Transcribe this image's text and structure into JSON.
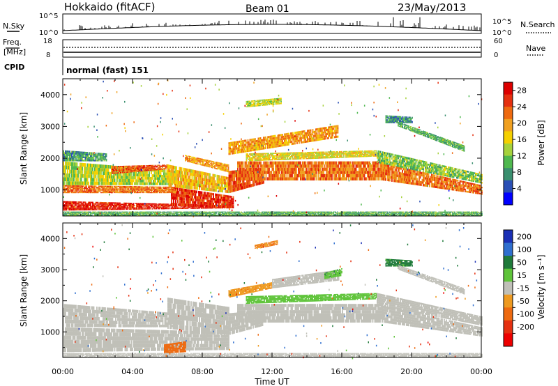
{
  "header": {
    "site": "Hokkaido (fitACF)",
    "beam": "Beam 01",
    "date": "23/May/2013"
  },
  "summary": {
    "nsky_label": "N.Sky",
    "nsearch_label": "N.Search",
    "noise_ticks": [
      "10^5",
      "10^0"
    ],
    "freq_label_top": "Freq.",
    "freq_label_unit": "[MHz]",
    "freq_ticks": [
      "18",
      "8"
    ],
    "nave_ticks": [
      "60",
      "0"
    ],
    "nave_label": "Nave",
    "cpid_label": "CPID",
    "cpid_value": "normal (fast) 151"
  },
  "colors": {
    "power_scale": [
      "#0000ff",
      "#2a4fb5",
      "#3a8f6f",
      "#4fb84f",
      "#a6d23c",
      "#f5d000",
      "#f0a020",
      "#ee6a10",
      "#e53010",
      "#dd0000"
    ],
    "velocity_scale": [
      "#1a2fb5",
      "#2f6fcf",
      "#1f7a3a",
      "#5fc43a",
      "#c0c0b8",
      "#c0c0b8",
      "#ee9a20",
      "#ee6a10",
      "#e53010",
      "#ee0000"
    ],
    "ground_scatter": "#b8b8b0"
  },
  "chart_data": [
    {
      "type": "heatmap",
      "name": "power",
      "ylabel": "Slant Range [km]",
      "yticks": [
        1000,
        2000,
        3000,
        4000
      ],
      "ylim": [
        180,
        4500
      ],
      "xlim": [
        0,
        24
      ],
      "colorbar_label": "Power [dB]",
      "colorbar_ticks": [
        4,
        8,
        12,
        16,
        20,
        24,
        28
      ],
      "colorbar_range": [
        0,
        30
      ],
      "bands": [
        {
          "t": [
            0.0,
            9.5
          ],
          "r0": [
            350,
            420
          ],
          "r1": [
            650,
            520
          ],
          "p": 27
        },
        {
          "t": [
            6.2,
            9.8
          ],
          "r0": [
            500,
            420
          ],
          "r1": [
            1100,
            800
          ],
          "p": 26
        },
        {
          "t": [
            0.0,
            6.5
          ],
          "r0": [
            900,
            900
          ],
          "r1": [
            1150,
            1100
          ],
          "p": 22
        },
        {
          "t": [
            0.0,
            6.5
          ],
          "r0": [
            1150,
            1150
          ],
          "r1": [
            1900,
            1600
          ],
          "p": 14
        },
        {
          "t": [
            0.0,
            2.5
          ],
          "r0": [
            1900,
            1900
          ],
          "r1": [
            2250,
            2150
          ],
          "p": 9
        },
        {
          "t": [
            2.8,
            6.0
          ],
          "r0": [
            1500,
            1650
          ],
          "r1": [
            1750,
            1800
          ],
          "p": 24
        },
        {
          "t": [
            6.0,
            9.5
          ],
          "r0": [
            1100,
            900
          ],
          "r1": [
            1800,
            1400
          ],
          "p": 18
        },
        {
          "t": [
            7.0,
            9.5
          ],
          "r0": [
            1900,
            1550
          ],
          "r1": [
            2100,
            1800
          ],
          "p": 20
        },
        {
          "t": [
            9.5,
            11.5
          ],
          "r0": [
            900,
            1200
          ],
          "r1": [
            1600,
            1700
          ],
          "p": 24
        },
        {
          "t": [
            10.0,
            18.3
          ],
          "r0": [
            1300,
            1300
          ],
          "r1": [
            1900,
            1900
          ],
          "p": 22
        },
        {
          "t": [
            10.5,
            18.0
          ],
          "r0": [
            1900,
            2050
          ],
          "r1": [
            2150,
            2250
          ],
          "p": 16
        },
        {
          "t": [
            9.5,
            15.8
          ],
          "r0": [
            2100,
            2650
          ],
          "r1": [
            2500,
            3050
          ],
          "p": 20
        },
        {
          "t": [
            18.3,
            24.0
          ],
          "r0": [
            1300,
            850
          ],
          "r1": [
            1850,
            1150
          ],
          "p": 22
        },
        {
          "t": [
            18.0,
            24.0
          ],
          "r0": [
            1850,
            1200
          ],
          "r1": [
            2250,
            1500
          ],
          "p": 12
        },
        {
          "t": [
            18.5,
            20.0
          ],
          "r0": [
            3100,
            3100
          ],
          "r1": [
            3350,
            3300
          ],
          "p": 8
        },
        {
          "t": [
            19.2,
            23.0
          ],
          "r0": [
            3000,
            2200
          ],
          "r1": [
            3150,
            2400
          ],
          "p": 10
        },
        {
          "t": [
            10.5,
            12.5
          ],
          "r0": [
            3600,
            3700
          ],
          "r1": [
            3800,
            3900
          ],
          "p": 14
        },
        {
          "t": [
            0.0,
            24.0
          ],
          "r0": [
            180,
            180
          ],
          "r1": [
            320,
            320
          ],
          "p": 10
        }
      ]
    },
    {
      "type": "heatmap",
      "name": "velocity",
      "ylabel": "Slant Range [km]",
      "yticks": [
        1000,
        2000,
        3000,
        4000
      ],
      "ylim": [
        180,
        4500
      ],
      "xlim": [
        0,
        24
      ],
      "xlabel": "Time UT",
      "xticks": [
        "00:00",
        "04:00",
        "08:00",
        "12:00",
        "16:00",
        "20:00",
        "00:00"
      ],
      "colorbar_label": "Velocity [m s⁻¹]",
      "colorbar_ticks": [
        200,
        100,
        50,
        15,
        -15,
        -50,
        -100,
        -200
      ],
      "colorbar_range": [
        -250,
        250
      ],
      "bands": [
        {
          "t": [
            0.0,
            9.5
          ],
          "r0": [
            350,
            420
          ],
          "r1": [
            1150,
            1000
          ],
          "v": 0
        },
        {
          "t": [
            5.8,
            7.0
          ],
          "r0": [
            300,
            350
          ],
          "r1": [
            600,
            700
          ],
          "v": -80
        },
        {
          "t": [
            0.0,
            6.5
          ],
          "r0": [
            1150,
            1150
          ],
          "r1": [
            1900,
            1600
          ],
          "v": 0
        },
        {
          "t": [
            6.0,
            9.5
          ],
          "r0": [
            1100,
            900
          ],
          "r1": [
            2100,
            1800
          ],
          "v": 0
        },
        {
          "t": [
            9.5,
            11.5
          ],
          "r0": [
            900,
            1200
          ],
          "r1": [
            1600,
            1700
          ],
          "v": 0
        },
        {
          "t": [
            10.0,
            18.3
          ],
          "r0": [
            1300,
            1300
          ],
          "r1": [
            1900,
            1900
          ],
          "v": 0
        },
        {
          "t": [
            10.5,
            18.0
          ],
          "r0": [
            1900,
            2050
          ],
          "r1": [
            2150,
            2250
          ],
          "v": 30
        },
        {
          "t": [
            9.5,
            12.0
          ],
          "r0": [
            2100,
            2400
          ],
          "r1": [
            2350,
            2600
          ],
          "v": -40
        },
        {
          "t": [
            12.0,
            15.8
          ],
          "r0": [
            2400,
            2650
          ],
          "r1": [
            2700,
            3000
          ],
          "v": 0
        },
        {
          "t": [
            15.0,
            16.0
          ],
          "r0": [
            2700,
            2800
          ],
          "r1": [
            2900,
            3050
          ],
          "v": 40
        },
        {
          "t": [
            18.3,
            24.0
          ],
          "r0": [
            1300,
            850
          ],
          "r1": [
            1850,
            1150
          ],
          "v": 0
        },
        {
          "t": [
            18.0,
            24.0
          ],
          "r0": [
            1850,
            1200
          ],
          "r1": [
            2250,
            1500
          ],
          "v": 0
        },
        {
          "t": [
            18.5,
            20.0
          ],
          "r0": [
            3100,
            3100
          ],
          "r1": [
            3350,
            3300
          ],
          "v": 60
        },
        {
          "t": [
            19.2,
            23.0
          ],
          "r0": [
            3000,
            2200
          ],
          "r1": [
            3150,
            2400
          ],
          "v": 0
        },
        {
          "t": [
            11.0,
            12.3
          ],
          "r0": [
            3650,
            3800
          ],
          "r1": [
            3800,
            3950
          ],
          "v": -50
        },
        {
          "t": [
            0.0,
            24.0
          ],
          "r0": [
            180,
            180
          ],
          "r1": [
            320,
            320
          ],
          "v": 0
        }
      ]
    }
  ]
}
